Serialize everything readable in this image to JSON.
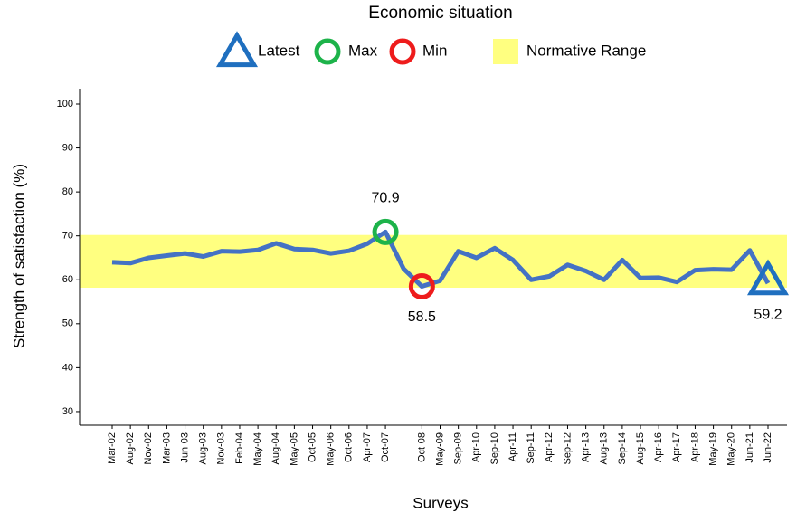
{
  "chart_data": {
    "type": "line",
    "title": "Economic situation",
    "xlabel": "Surveys",
    "ylabel": "Strength of satisfaction (%)",
    "categories": [
      "Mar-02",
      "Aug-02",
      "Nov-02",
      "Mar-03",
      "Jun-03",
      "Aug-03",
      "Nov-03",
      "Feb-04",
      "May-04",
      "Aug-04",
      "May-05",
      "Oct-05",
      "May-06",
      "Oct-06",
      "Apr-07",
      "Oct-07",
      null,
      "Oct-08",
      "May-09",
      "Sep-09",
      "Apr-10",
      "Sep-10",
      "Apr-11",
      "Sep-11",
      "Apr-12",
      "Sep-12",
      "Apr-13",
      "Aug-13",
      "Sep-14",
      "Aug-15",
      "Apr-16",
      "Apr-17",
      "Apr-18",
      "May-19",
      "May-20",
      "Jun-21",
      "Jun-22"
    ],
    "series": [
      {
        "color": "#4472c4",
        "values": [
          64.0,
          63.8,
          65.0,
          65.5,
          66.0,
          65.3,
          66.5,
          66.4,
          66.8,
          68.3,
          67.0,
          66.8,
          66.0,
          66.6,
          68.2,
          70.9,
          62.5,
          58.5,
          59.8,
          66.5,
          65.0,
          67.2,
          64.5,
          60.0,
          60.8,
          63.4,
          62.0,
          60.0,
          64.5,
          60.4,
          60.5,
          59.5,
          62.2,
          62.4,
          62.3,
          66.7,
          59.2
        ]
      }
    ],
    "ylim": [
      26.9,
      103.5
    ],
    "yticks": [
      30,
      40,
      50,
      60,
      70,
      80,
      90,
      100
    ],
    "legend": {
      "latest": {
        "name": "Latest",
        "color": "#1f6fbf"
      },
      "max": {
        "name": "Max",
        "color": "#1db34a"
      },
      "min": {
        "name": "Min",
        "color": "#ee1c1c"
      },
      "normative_range": {
        "name": "Normative Range",
        "color": "#ffff80",
        "range": [
          58.2,
          70.2
        ]
      }
    }
  }
}
